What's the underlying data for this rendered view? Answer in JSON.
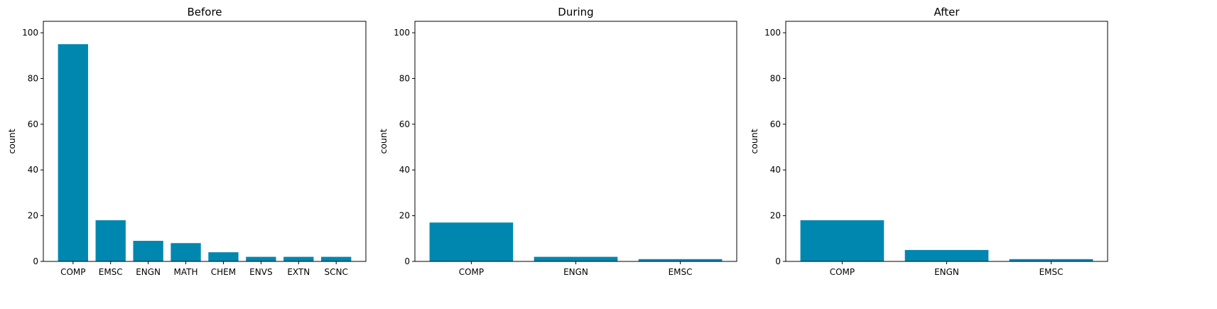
{
  "chart_data": [
    {
      "type": "bar",
      "title": "Before",
      "ylabel": "count",
      "xlabel": "",
      "ylim": [
        0,
        105
      ],
      "yticks": [
        0,
        20,
        40,
        60,
        80,
        100
      ],
      "categories": [
        "COMP",
        "EMSC",
        "ENGN",
        "MATH",
        "CHEM",
        "ENVS",
        "EXTN",
        "SCNC"
      ],
      "values": [
        95,
        18,
        9,
        8,
        4,
        2,
        2,
        2
      ],
      "color": "#0087AF",
      "grid": false
    },
    {
      "type": "bar",
      "title": "During",
      "ylabel": "count",
      "xlabel": "",
      "ylim": [
        0,
        105
      ],
      "yticks": [
        0,
        20,
        40,
        60,
        80,
        100
      ],
      "categories": [
        "COMP",
        "ENGN",
        "EMSC"
      ],
      "values": [
        17,
        2,
        1
      ],
      "color": "#0087AF",
      "grid": false
    },
    {
      "type": "bar",
      "title": "After",
      "ylabel": "count",
      "xlabel": "",
      "ylim": [
        0,
        105
      ],
      "yticks": [
        0,
        20,
        40,
        60,
        80,
        100
      ],
      "categories": [
        "COMP",
        "ENGN",
        "EMSC"
      ],
      "values": [
        18,
        5,
        1
      ],
      "color": "#0087AF",
      "grid": false
    }
  ]
}
